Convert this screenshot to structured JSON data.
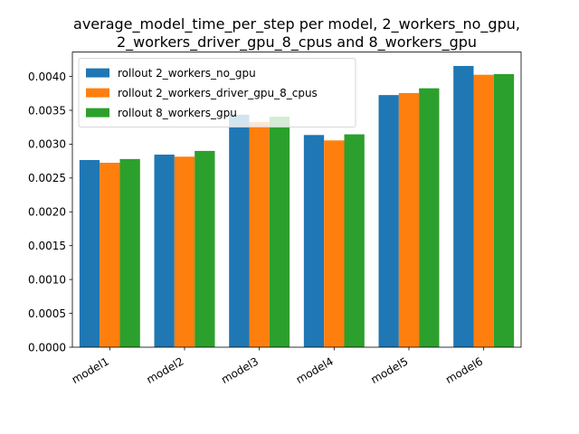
{
  "chart_data": {
    "type": "bar",
    "title_lines": [
      "average_model_time_per_step per model, 2_workers_no_gpu,",
      "2_workers_driver_gpu_8_cpus and 8_workers_gpu"
    ],
    "xlabel": "",
    "ylabel": "",
    "categories": [
      "model1",
      "model2",
      "model3",
      "model4",
      "model5",
      "model6"
    ],
    "ylim": [
      0,
      0.00436
    ],
    "yticks": [
      "0.0000",
      "0.0005",
      "0.0010",
      "0.0015",
      "0.0020",
      "0.0025",
      "0.0030",
      "0.0035",
      "0.0040"
    ],
    "series": [
      {
        "name": "rollout 2_workers_no_gpu",
        "color": "#1f77b4",
        "values": [
          0.002765,
          0.002845,
          0.003435,
          0.003135,
          0.003725,
          0.004155
        ]
      },
      {
        "name": "rollout 2_workers_driver_gpu_8_cpus",
        "color": "#ff7f0e",
        "values": [
          0.002725,
          0.002815,
          0.003325,
          0.003055,
          0.003755,
          0.004025
        ]
      },
      {
        "name": "rollout 8_workers_gpu",
        "color": "#2ca02c",
        "values": [
          0.00278,
          0.0029,
          0.003405,
          0.003145,
          0.003825,
          0.004035
        ]
      }
    ],
    "grid": false,
    "legend": "upper-left"
  }
}
